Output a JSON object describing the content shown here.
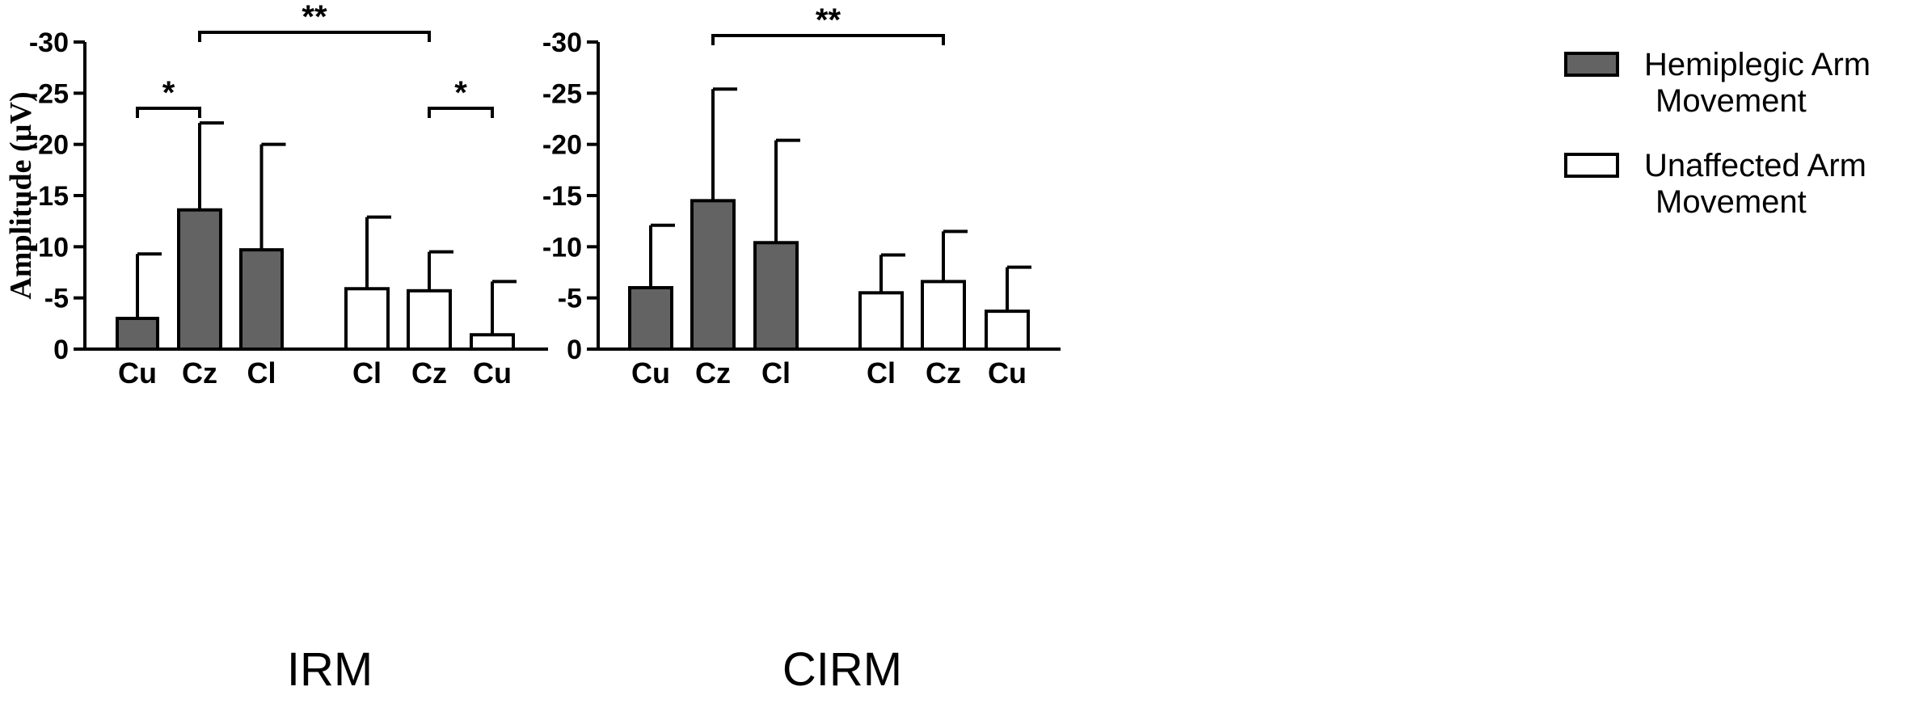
{
  "chart_data": [
    {
      "type": "bar",
      "title": "IRM",
      "ylabel": "Amplitude (µV)",
      "ylim": [
        0,
        -30
      ],
      "yticks": [
        "-30",
        "-25",
        "-20",
        "-15",
        "-10",
        "-5",
        "0"
      ],
      "groups": [
        {
          "series": "Hemiplegic Arm Movement",
          "categories": [
            "Cu",
            "Cz",
            "Cl"
          ],
          "values": [
            -3.0,
            -13.6,
            -9.7
          ],
          "errors": [
            6.3,
            8.5,
            10.3
          ]
        },
        {
          "series": "Unaffected Arm Movement",
          "categories": [
            "Cl",
            "Cz",
            "Cu"
          ],
          "values": [
            -5.9,
            -5.7,
            -1.4
          ],
          "errors": [
            7.0,
            3.8,
            5.2
          ]
        }
      ],
      "significance": [
        {
          "from": "Hemiplegic Arm Movement · Cu",
          "to": "Hemiplegic Arm Movement · Cz",
          "label": "*"
        },
        {
          "from": "Hemiplegic Arm Movement · Cz",
          "to": "Unaffected Arm Movement · Cz",
          "label": "**"
        },
        {
          "from": "Unaffected Arm Movement · Cz",
          "to": "Unaffected Arm Movement · Cu",
          "label": "*"
        }
      ]
    },
    {
      "type": "bar",
      "title": "CIRM",
      "ylabel": "",
      "ylim": [
        0,
        -30
      ],
      "yticks": [
        "-30",
        "-25",
        "-20",
        "-15",
        "-10",
        "-5",
        "0"
      ],
      "groups": [
        {
          "series": "Hemiplegic Arm Movement",
          "categories": [
            "Cu",
            "Cz",
            "Cl"
          ],
          "values": [
            -6.0,
            -14.5,
            -10.4
          ],
          "errors": [
            6.1,
            10.9,
            10.0
          ]
        },
        {
          "series": "Unaffected Arm Movement",
          "categories": [
            "Cl",
            "Cz",
            "Cu"
          ],
          "values": [
            -5.5,
            -6.6,
            -3.7
          ],
          "errors": [
            3.7,
            4.9,
            4.3
          ]
        }
      ],
      "significance": [
        {
          "from": "Hemiplegic Arm Movement · Cz",
          "to": "Unaffected Arm Movement · Cz",
          "label": "**"
        }
      ]
    }
  ],
  "legend": {
    "placement": "right",
    "entries": [
      {
        "lines": [
          "Hemiplegic Arm",
          "Movement"
        ],
        "color": "#636363"
      },
      {
        "lines": [
          "Unaffected Arm",
          "Movement"
        ],
        "color": "#ffffff"
      }
    ]
  },
  "colors": {
    "hemiplegic": "#636363",
    "unaffected": "#ffffff",
    "stroke": "#000000"
  }
}
